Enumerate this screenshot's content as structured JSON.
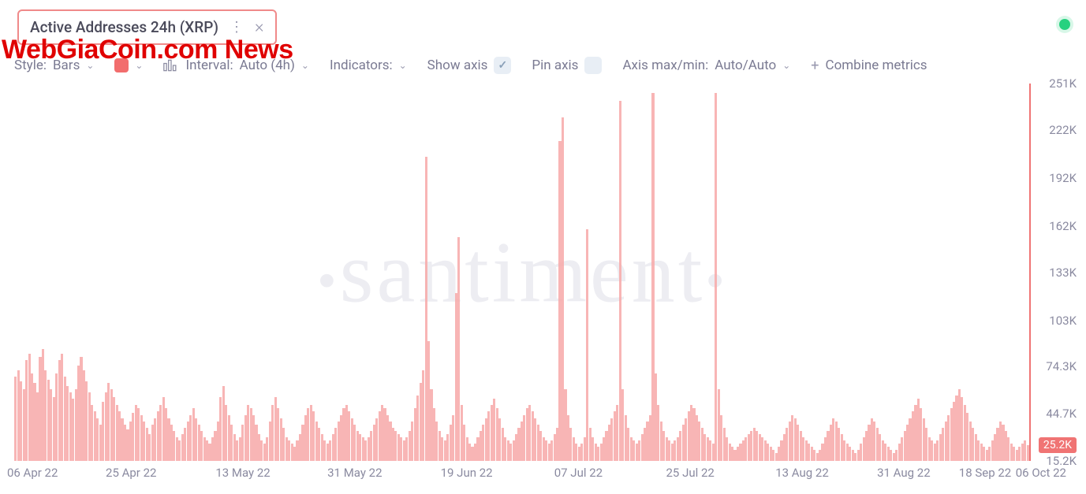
{
  "metric": {
    "label": "Active Addresses 24h (XRP)"
  },
  "brand_overlay": "WebGiaCoin.com News",
  "status": {
    "color": "#27d17f"
  },
  "toolbar": {
    "style_label": "Style:",
    "style_value": "Bars",
    "swatch_color": "#f26d6d",
    "interval_label": "Interval:",
    "interval_value": "Auto (4h)",
    "indicators_label": "Indicators:",
    "showaxis_label": "Show axis",
    "showaxis_checked": true,
    "pinaxis_label": "Pin axis",
    "pinaxis_checked": false,
    "axisminmax_label": "Axis max/min:",
    "axisminmax_value": "Auto/Auto",
    "combine_label": "Combine metrics"
  },
  "watermark": "santiment",
  "chart": {
    "type": "bar",
    "bar_color": "#f7a8a8",
    "bar_opacity": 0.85,
    "background": "#ffffff",
    "ylim": [
      15200,
      251000
    ],
    "y_ticks": [
      {
        "label": "251K",
        "value": 251000
      },
      {
        "label": "222K",
        "value": 222000
      },
      {
        "label": "192K",
        "value": 192000
      },
      {
        "label": "162K",
        "value": 162000
      },
      {
        "label": "133K",
        "value": 133000
      },
      {
        "label": "103K",
        "value": 103000
      },
      {
        "label": "74.3K",
        "value": 74300
      },
      {
        "label": "44.7K",
        "value": 44700
      },
      {
        "label": "15.2K",
        "value": 15200
      }
    ],
    "current_badge": {
      "label": "25.2K",
      "value": 25200,
      "color": "#f07474"
    },
    "x_ticks": [
      {
        "label": "06 Apr 22",
        "pos": 0.018
      },
      {
        "label": "25 Apr 22",
        "pos": 0.115
      },
      {
        "label": "13 May 22",
        "pos": 0.225
      },
      {
        "label": "31 May 22",
        "pos": 0.335
      },
      {
        "label": "19 Jun 22",
        "pos": 0.445
      },
      {
        "label": "07 Jul 22",
        "pos": 0.555
      },
      {
        "label": "25 Jul 22",
        "pos": 0.665
      },
      {
        "label": "13 Aug 22",
        "pos": 0.775
      },
      {
        "label": "31 Aug 22",
        "pos": 0.875
      },
      {
        "label": "18 Sep 22",
        "pos": 0.955
      },
      {
        "label": "06 Oct 22",
        "pos": 1.01
      }
    ],
    "last_line_color": "#f07474",
    "values": [
      68,
      72,
      65,
      60,
      78,
      82,
      70,
      64,
      58,
      80,
      85,
      72,
      66,
      60,
      55,
      70,
      78,
      82,
      68,
      62,
      58,
      54,
      60,
      75,
      80,
      72,
      65,
      58,
      50,
      46,
      42,
      38,
      52,
      58,
      64,
      60,
      55,
      50,
      46,
      42,
      38,
      35,
      40,
      45,
      50,
      48,
      44,
      40,
      36,
      32,
      38,
      42,
      46,
      50,
      55,
      48,
      42,
      38,
      34,
      30,
      28,
      32,
      36,
      40,
      44,
      48,
      42,
      38,
      34,
      30,
      28,
      26,
      30,
      34,
      40,
      55,
      62,
      50,
      44,
      38,
      32,
      28,
      30,
      38,
      44,
      50,
      48,
      44,
      38,
      32,
      28,
      26,
      30,
      40,
      50,
      55,
      48,
      42,
      36,
      30,
      28,
      26,
      24,
      28,
      32,
      38,
      44,
      48,
      50,
      46,
      40,
      36,
      32,
      28,
      26,
      28,
      32,
      36,
      40,
      44,
      48,
      50,
      46,
      42,
      38,
      34,
      32,
      30,
      28,
      30,
      34,
      38,
      42,
      46,
      50,
      48,
      44,
      40,
      36,
      34,
      32,
      30,
      28,
      30,
      34,
      40,
      48,
      56,
      64,
      72,
      205,
      90,
      60,
      48,
      40,
      34,
      30,
      28,
      32,
      38,
      44,
      120,
      155,
      50,
      38,
      30,
      26,
      24,
      26,
      30,
      34,
      38,
      42,
      46,
      50,
      54,
      48,
      42,
      36,
      30,
      28,
      26,
      28,
      32,
      36,
      40,
      44,
      48,
      50,
      46,
      42,
      38,
      34,
      30,
      28,
      26,
      28,
      32,
      36,
      215,
      230,
      60,
      44,
      36,
      30,
      26,
      24,
      26,
      30,
      160,
      36,
      30,
      26,
      24,
      26,
      30,
      34,
      38,
      42,
      46,
      50,
      240,
      60,
      44,
      36,
      30,
      28,
      26,
      28,
      32,
      36,
      40,
      44,
      245,
      70,
      50,
      40,
      34,
      30,
      28,
      26,
      28,
      30,
      34,
      38,
      42,
      46,
      50,
      48,
      44,
      40,
      36,
      32,
      30,
      28,
      26,
      245,
      60,
      44,
      36,
      30,
      26,
      24,
      22,
      24,
      26,
      28,
      30,
      32,
      34,
      36,
      34,
      32,
      30,
      28,
      26,
      24,
      22,
      20,
      24,
      28,
      32,
      36,
      40,
      44,
      42,
      38,
      34,
      30,
      28,
      26,
      24,
      22,
      20,
      22,
      26,
      30,
      34,
      38,
      42,
      40,
      36,
      32,
      28,
      26,
      24,
      22,
      20,
      22,
      26,
      30,
      34,
      38,
      42,
      40,
      36,
      32,
      28,
      26,
      24,
      22,
      20,
      22,
      26,
      30,
      34,
      38,
      42,
      46,
      50,
      54,
      48,
      42,
      36,
      30,
      28,
      26,
      28,
      32,
      36,
      40,
      44,
      48,
      52,
      56,
      60,
      55,
      50,
      45,
      40,
      36,
      32,
      28,
      26,
      24,
      22,
      24,
      28,
      32,
      36,
      40,
      38,
      34,
      30,
      26,
      24,
      22,
      24,
      26,
      28,
      25
    ]
  }
}
